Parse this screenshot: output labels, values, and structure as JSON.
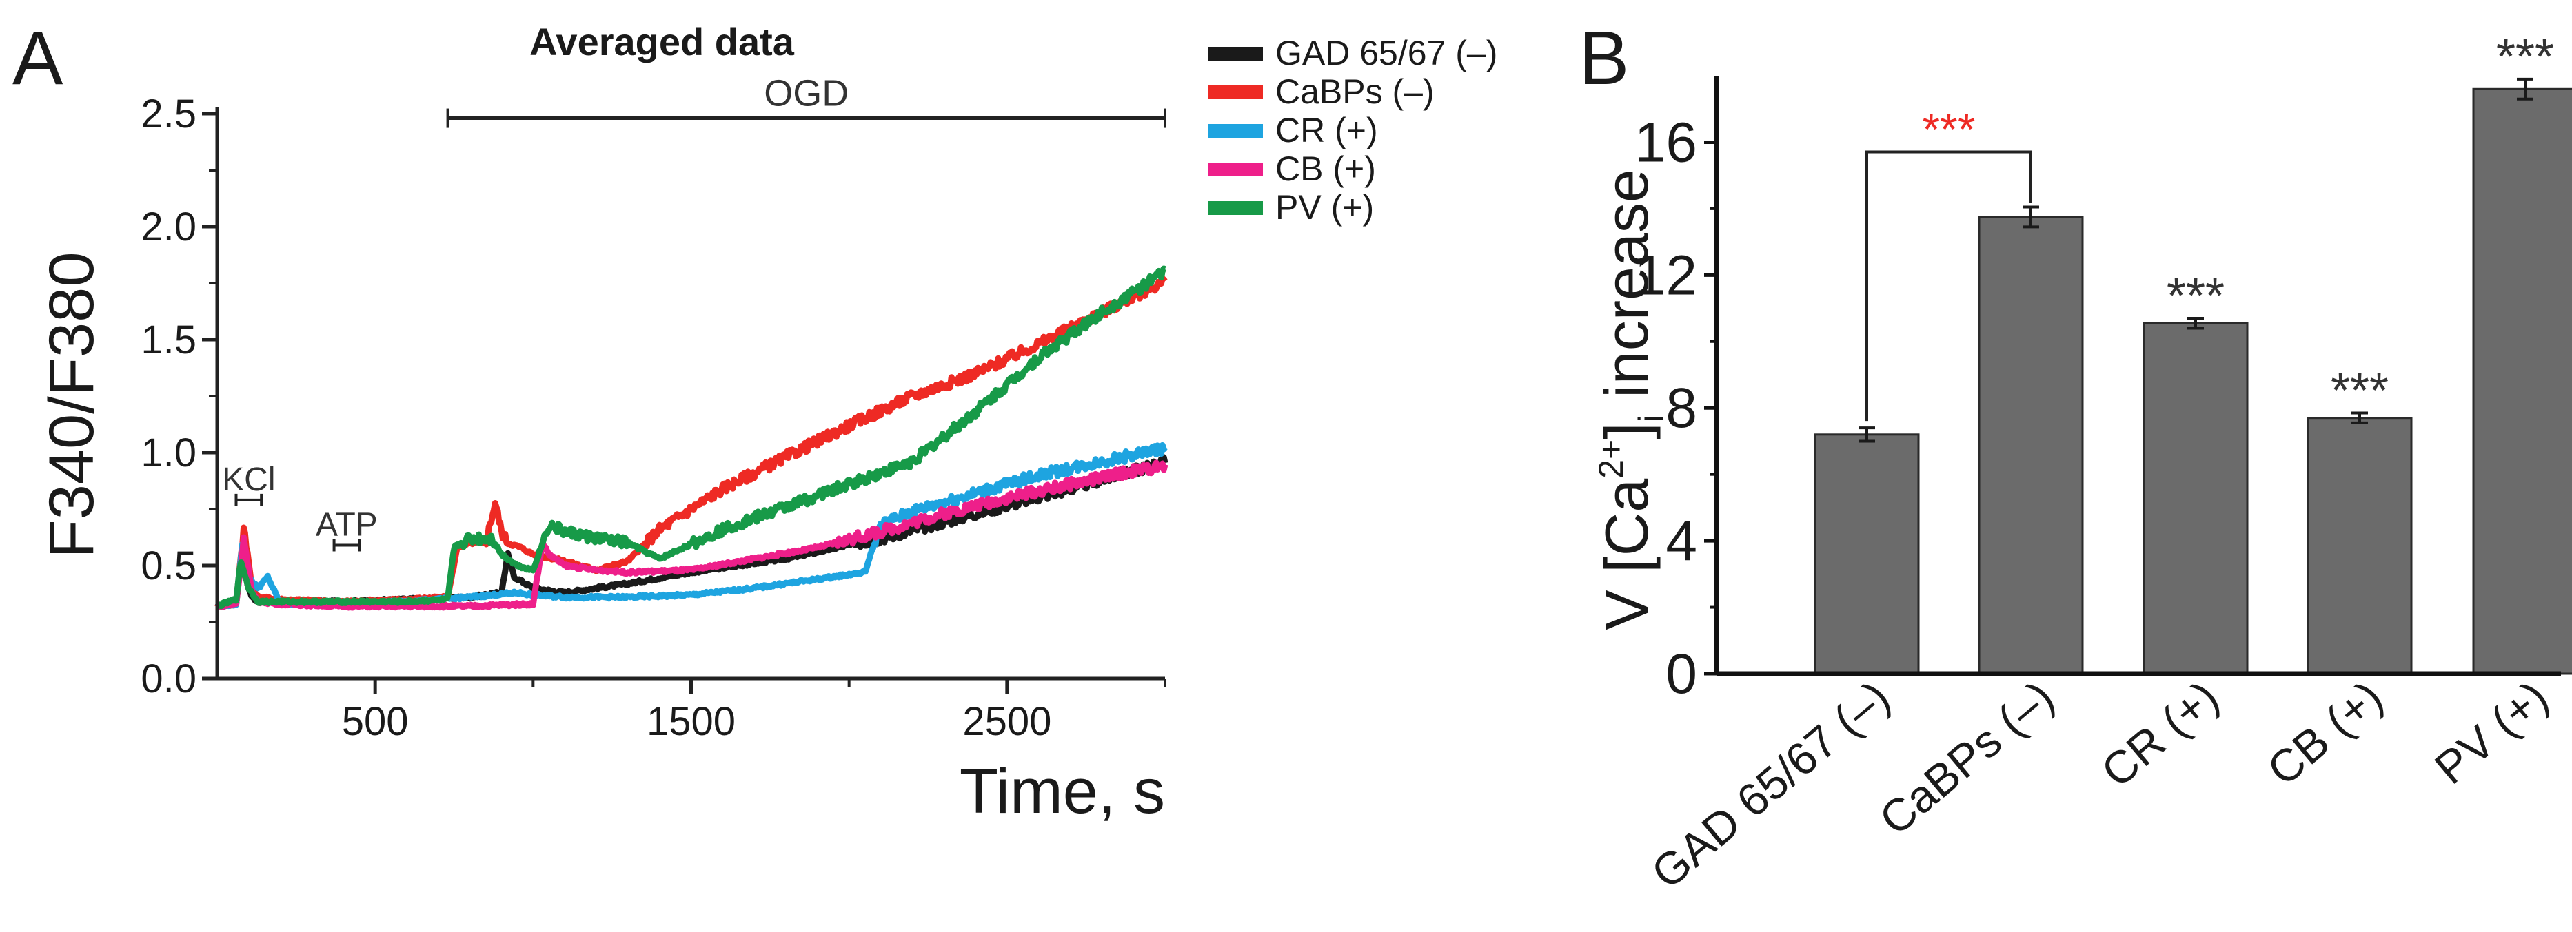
{
  "chart_data": [
    {
      "panel_label": "A",
      "type": "line",
      "title": "Averaged data",
      "xlabel": "Time, s",
      "ylabel": "F340/F380",
      "xlim": [
        0,
        3000
      ],
      "ylim": [
        0,
        2.5
      ],
      "xticks": [
        500,
        1500,
        2500
      ],
      "xtick_labels": [
        "500",
        "1500",
        "2500"
      ],
      "yticks": [
        0,
        0.5,
        1,
        1.5,
        2,
        2.5
      ],
      "ytick_labels": [
        "0.0",
        "0.5",
        "1.0",
        "1.5",
        "2.0",
        "2.5"
      ],
      "annotations": [
        {
          "label": "OGD",
          "x_start": 730,
          "x_end": 3000,
          "y": 2.48
        },
        {
          "label": "KCl",
          "x_start": 60,
          "x_end": 140,
          "y": 0.79
        },
        {
          "label": "ATP",
          "x_start": 370,
          "x_end": 450,
          "y": 0.59
        }
      ],
      "series": [
        {
          "name": "GAD 65/67 (−)",
          "legend_label": "GAD 65/67 (–)",
          "color": "#1a1a1a",
          "x": [
            0,
            60,
            80,
            95,
            110,
            130,
            200,
            400,
            600,
            800,
            900,
            920,
            940,
            1000,
            1100,
            1300,
            1500,
            1800,
            2100,
            2400,
            2700,
            3000
          ],
          "y": [
            0.32,
            0.33,
            0.58,
            0.42,
            0.36,
            0.34,
            0.34,
            0.34,
            0.35,
            0.36,
            0.38,
            0.55,
            0.45,
            0.4,
            0.38,
            0.42,
            0.47,
            0.53,
            0.62,
            0.73,
            0.84,
            0.96
          ]
        },
        {
          "name": "CaBPs (−)",
          "legend_label": "CaBPs (–)",
          "color": "#ee2a24",
          "x": [
            0,
            60,
            85,
            110,
            130,
            200,
            400,
            600,
            730,
            760,
            800,
            850,
            880,
            900,
            920,
            960,
            1000,
            1100,
            1200,
            1300,
            1400,
            1600,
            1800,
            2000,
            2200,
            2400,
            2600,
            2800,
            3000
          ],
          "y": [
            0.32,
            0.33,
            0.68,
            0.4,
            0.36,
            0.35,
            0.34,
            0.35,
            0.36,
            0.58,
            0.6,
            0.6,
            0.78,
            0.65,
            0.6,
            0.58,
            0.55,
            0.52,
            0.48,
            0.52,
            0.66,
            0.84,
            0.98,
            1.12,
            1.25,
            1.35,
            1.48,
            1.62,
            1.76
          ]
        },
        {
          "name": "CR (+)",
          "legend_label": "CR (+)",
          "color": "#1ea4e0",
          "x": [
            0,
            60,
            80,
            100,
            130,
            160,
            200,
            400,
            600,
            800,
            950,
            1000,
            1100,
            1300,
            1500,
            1700,
            1900,
            2050,
            2100,
            2200,
            2400,
            2600,
            2800,
            3000
          ],
          "y": [
            0.32,
            0.33,
            0.6,
            0.45,
            0.4,
            0.45,
            0.33,
            0.33,
            0.34,
            0.36,
            0.38,
            0.37,
            0.36,
            0.36,
            0.37,
            0.4,
            0.44,
            0.47,
            0.68,
            0.74,
            0.82,
            0.9,
            0.96,
            1.02
          ]
        },
        {
          "name": "CB (+)",
          "legend_label": "CB (+)",
          "color": "#ee1f8a",
          "x": [
            0,
            60,
            85,
            110,
            130,
            200,
            400,
            600,
            800,
            1000,
            1030,
            1050,
            1100,
            1200,
            1300,
            1500,
            1700,
            1900,
            2100,
            2300,
            2500,
            2700,
            2900,
            3000
          ],
          "y": [
            0.32,
            0.33,
            0.62,
            0.38,
            0.34,
            0.33,
            0.32,
            0.32,
            0.32,
            0.33,
            0.6,
            0.55,
            0.5,
            0.48,
            0.47,
            0.48,
            0.53,
            0.58,
            0.65,
            0.73,
            0.8,
            0.86,
            0.92,
            0.94
          ]
        },
        {
          "name": "PV (+)",
          "legend_label": "PV (+)",
          "color": "#179a48",
          "x": [
            0,
            60,
            75,
            100,
            130,
            200,
            400,
            600,
            730,
            750,
            800,
            870,
            900,
            950,
            1000,
            1050,
            1100,
            1200,
            1300,
            1400,
            1600,
            1800,
            2000,
            2200,
            2400,
            2600,
            2800,
            3000
          ],
          "y": [
            0.32,
            0.35,
            0.52,
            0.4,
            0.34,
            0.34,
            0.34,
            0.34,
            0.35,
            0.58,
            0.62,
            0.62,
            0.55,
            0.5,
            0.48,
            0.68,
            0.65,
            0.62,
            0.6,
            0.53,
            0.66,
            0.76,
            0.86,
            0.96,
            1.18,
            1.42,
            1.62,
            1.8
          ]
        }
      ]
    },
    {
      "panel_label": "B",
      "type": "bar",
      "xlabel": "",
      "ylabel": "V [Ca2+]i increase",
      "ylabel_parts": {
        "prefix": "V [Ca",
        "superscript": "2+",
        "bracket": "]",
        "subscript": "i",
        "suffix": " increase"
      },
      "ylim": [
        0,
        18
      ],
      "yticks": [
        0,
        4,
        8,
        12,
        16
      ],
      "ytick_labels": [
        "0",
        "4",
        "8",
        "12",
        "16"
      ],
      "categories": [
        "GAD 65/67 (–)",
        "CaBPs (–)",
        "CR (+)",
        "CB (+)",
        "PV (+)"
      ],
      "values": [
        7.2,
        13.75,
        10.55,
        7.7,
        17.6
      ],
      "errors": [
        0.2,
        0.3,
        0.15,
        0.15,
        0.3
      ],
      "significance": [
        "",
        "***",
        "***",
        "***",
        "***"
      ],
      "significance_colors": [
        "",
        "#ee2a24",
        "#333333",
        "#333333",
        "#333333"
      ],
      "bar_color": "#6b6b6b",
      "comparison_bracket": {
        "from": 0,
        "to": 1,
        "label": "***",
        "color": "#ee2a24"
      }
    }
  ]
}
